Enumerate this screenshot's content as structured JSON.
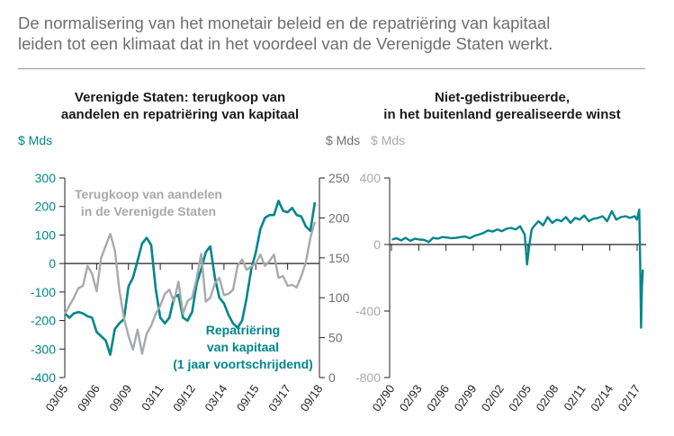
{
  "headline": {
    "line1": "De normalisering van het monetair beleid en de repatriëring van kapitaal",
    "line2": "leiden tot een klimaat dat in het voordeel van de Verenigde Staten werkt."
  },
  "colors": {
    "teal": "#00868b",
    "gray": "#a7a9ac",
    "axis": "#231f20",
    "text_gray": "#6d6e71"
  },
  "chart_data": [
    {
      "type": "line",
      "title": [
        "Verenigde Staten: terugkoop van",
        "aandelen  en repatriëring van kapitaal"
      ],
      "left_unit": "$ Mds",
      "right_unit": "$ Mds",
      "left_ylim": [
        -400,
        300
      ],
      "left_ticks": [
        "300",
        "200",
        "100",
        "0",
        "-100",
        "-200",
        "-300",
        "-400"
      ],
      "right_ylim": [
        0,
        250
      ],
      "right_ticks": [
        "250",
        "200",
        "150",
        "100",
        "50",
        "0"
      ],
      "x_range": [
        2005.0,
        2019.0
      ],
      "x_ticks": [
        "03/05",
        "09/06",
        "09/09",
        "03/11",
        "09/12",
        "03/14",
        "09/15",
        "03/17",
        "09/18"
      ],
      "series": [
        {
          "name": "Repatriëring van kapitaal (1 jaar voortschrijdend)",
          "axis": "left",
          "color": "#00868b",
          "x": [
            2005.0,
            2005.25,
            2005.5,
            2005.75,
            2006.0,
            2006.25,
            2006.5,
            2006.75,
            2007.0,
            2007.25,
            2007.5,
            2007.75,
            2008.0,
            2008.25,
            2008.5,
            2008.75,
            2009.0,
            2009.25,
            2009.5,
            2009.75,
            2010.0,
            2010.25,
            2010.5,
            2010.75,
            2011.0,
            2011.25,
            2011.5,
            2011.75,
            2012.0,
            2012.25,
            2012.5,
            2012.75,
            2013.0,
            2013.25,
            2013.5,
            2013.75,
            2014.0,
            2014.25,
            2014.5,
            2014.75,
            2015.0,
            2015.25,
            2015.5,
            2015.75,
            2016.0,
            2016.25,
            2016.5,
            2016.75,
            2017.0,
            2017.25,
            2017.5,
            2017.75,
            2018.0,
            2018.25,
            2018.5,
            2018.75
          ],
          "y": [
            -175,
            -190,
            -175,
            -170,
            -175,
            -185,
            -190,
            -240,
            -255,
            -270,
            -320,
            -230,
            -210,
            -195,
            -80,
            -50,
            10,
            70,
            90,
            65,
            -90,
            -190,
            -210,
            -190,
            -120,
            -110,
            -190,
            -200,
            -170,
            -70,
            -20,
            40,
            60,
            -50,
            -120,
            -140,
            -180,
            -210,
            -225,
            -200,
            -120,
            -20,
            40,
            120,
            160,
            170,
            170,
            220,
            185,
            180,
            195,
            170,
            165,
            130,
            115,
            215
          ]
        },
        {
          "name": "Terugkoop van aandelen in de Verenigde Staten",
          "axis": "right",
          "color": "#a7a9ac",
          "x": [
            2005.0,
            2005.25,
            2005.5,
            2005.75,
            2006.0,
            2006.25,
            2006.5,
            2006.75,
            2007.0,
            2007.25,
            2007.5,
            2007.75,
            2008.0,
            2008.25,
            2008.5,
            2008.75,
            2009.0,
            2009.25,
            2009.5,
            2009.75,
            2010.0,
            2010.25,
            2010.5,
            2010.75,
            2011.0,
            2011.25,
            2011.5,
            2011.75,
            2012.0,
            2012.25,
            2012.5,
            2012.75,
            2013.0,
            2013.25,
            2013.5,
            2013.75,
            2014.0,
            2014.25,
            2014.5,
            2014.75,
            2015.0,
            2015.25,
            2015.5,
            2015.75,
            2016.0,
            2016.25,
            2016.5,
            2016.75,
            2017.0,
            2017.25,
            2017.5,
            2017.75,
            2018.0,
            2018.25,
            2018.5,
            2018.75
          ],
          "y": [
            80,
            90,
            100,
            112,
            115,
            140,
            130,
            108,
            150,
            165,
            180,
            160,
            110,
            75,
            52,
            35,
            60,
            30,
            55,
            65,
            80,
            90,
            105,
            110,
            95,
            120,
            80,
            96,
            100,
            125,
            155,
            95,
            100,
            118,
            125,
            103,
            105,
            110,
            140,
            148,
            135,
            139,
            143,
            154,
            140,
            146,
            154,
            125,
            127,
            115,
            116,
            113,
            127,
            144,
            175,
            195
          ]
        }
      ],
      "annotations": {
        "gray_label": [
          "Terugkoop van aandelen",
          "in de Verenigde Staten"
        ],
        "teal_label": [
          "Repatriëring",
          "van kapitaal",
          "(1 jaar voortschrijdend)"
        ]
      }
    },
    {
      "type": "line",
      "title": [
        "Niet-gedistribueerde,",
        "in het buitenland gerealiseerde winst"
      ],
      "unit": "$ Mds",
      "ylim": [
        -800,
        400
      ],
      "y_ticks": [
        "400",
        "0",
        "-400",
        "-800"
      ],
      "x_range": [
        1989.75,
        2017.75
      ],
      "x_ticks": [
        "02/90",
        "02/93",
        "02/96",
        "02/99",
        "02/02",
        "02/05",
        "02/08",
        "02/11",
        "02/14",
        "02/17"
      ],
      "series": [
        {
          "name": "",
          "color": "#00868b",
          "x": [
            1990.0,
            1990.5,
            1991.0,
            1991.5,
            1992.0,
            1992.5,
            1993.0,
            1993.5,
            1994.0,
            1994.5,
            1995.0,
            1995.5,
            1996.0,
            1996.5,
            1997.0,
            1997.5,
            1998.0,
            1998.5,
            1999.0,
            1999.5,
            2000.0,
            2000.5,
            2001.0,
            2001.5,
            2002.0,
            2002.5,
            2003.0,
            2003.5,
            2004.0,
            2004.5,
            2004.75,
            2005.0,
            2005.25,
            2005.5,
            2006.0,
            2006.5,
            2007.0,
            2007.5,
            2008.0,
            2008.5,
            2009.0,
            2009.5,
            2010.0,
            2010.5,
            2011.0,
            2011.5,
            2012.0,
            2012.5,
            2013.0,
            2013.5,
            2014.0,
            2014.5,
            2015.0,
            2015.5,
            2016.0,
            2016.5,
            2016.75,
            2017.0,
            2017.1,
            2017.2,
            2017.3,
            2017.4
          ],
          "y": [
            30,
            38,
            25,
            40,
            22,
            35,
            30,
            28,
            15,
            40,
            35,
            45,
            42,
            38,
            40,
            45,
            48,
            38,
            52,
            60,
            70,
            85,
            78,
            90,
            80,
            95,
            100,
            90,
            110,
            60,
            -120,
            -5,
            90,
            110,
            140,
            115,
            165,
            130,
            150,
            140,
            165,
            130,
            160,
            150,
            175,
            140,
            155,
            160,
            170,
            140,
            200,
            150,
            165,
            170,
            160,
            170,
            150,
            210,
            -100,
            -500,
            -250,
            -150
          ]
        }
      ]
    }
  ]
}
